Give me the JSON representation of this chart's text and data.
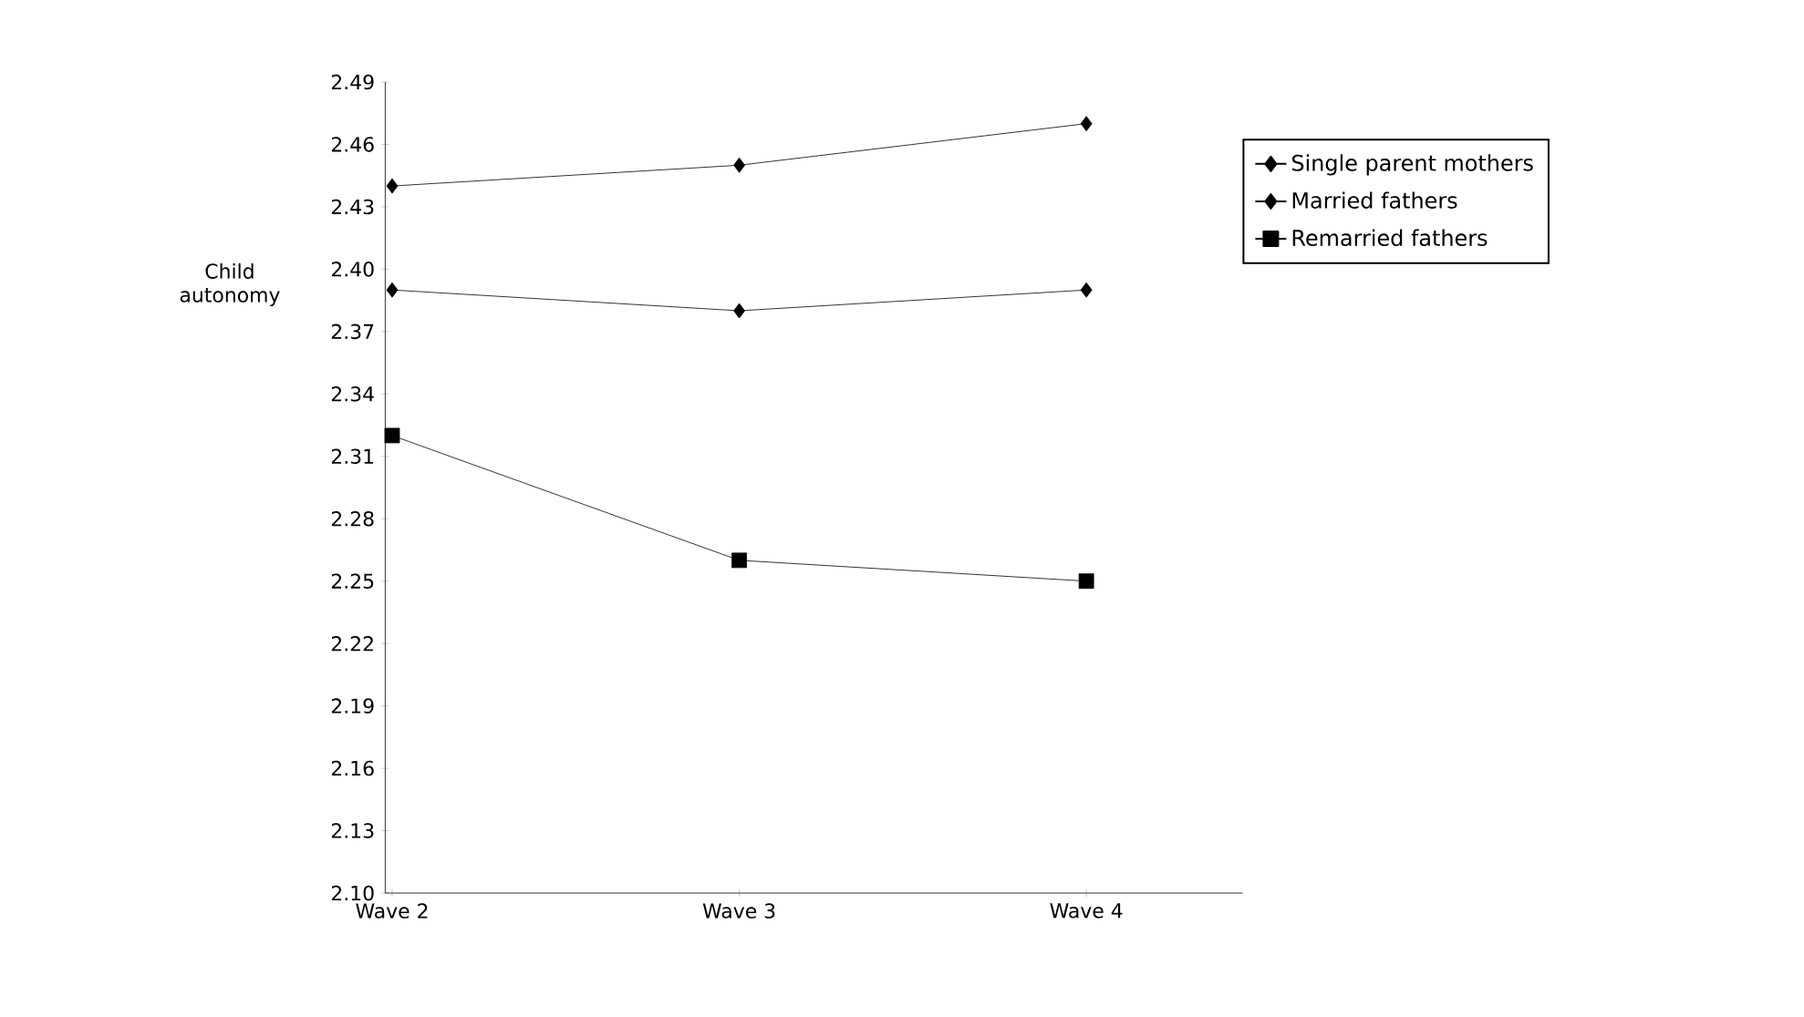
{
  "chart_data": {
    "type": "line",
    "ylabel": "Child autonomy",
    "categories": [
      "Wave 2",
      "Wave 3",
      "Wave 4"
    ],
    "series": [
      {
        "name": "Single parent mothers",
        "color": "#000000",
        "marker": "diamond",
        "values": [
          2.44,
          2.45,
          2.47
        ]
      },
      {
        "name": "Married fathers",
        "color": "#000000",
        "marker": "diamond",
        "values": [
          2.39,
          2.38,
          2.39
        ]
      },
      {
        "name": "Remarried fathers",
        "color": "#000000",
        "marker": "square",
        "values": [
          2.32,
          2.26,
          2.25
        ]
      }
    ],
    "ylim": [
      2.1,
      2.49
    ],
    "yticks": [
      {
        "value": 2.1,
        "label": "2.10"
      },
      2.13,
      2.16,
      2.19,
      2.22,
      2.25,
      2.28,
      2.31,
      2.34,
      2.37,
      {
        "value": 2.4,
        "label": "2.40"
      },
      2.43,
      2.46,
      2.49
    ],
    "grid": false,
    "legend": "right",
    "line_style": "solid"
  }
}
